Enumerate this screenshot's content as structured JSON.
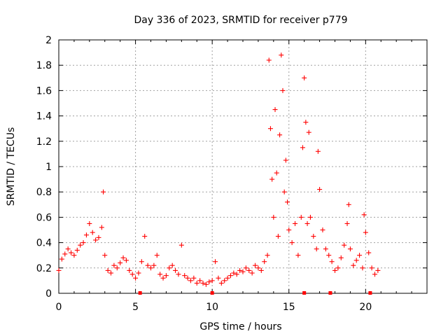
{
  "chart_data": {
    "type": "scatter",
    "title": "Day 336 of 2023, SRMTID for receiver p779",
    "xlabel": "GPS time / hours",
    "ylabel": "SRMTID / TECUs",
    "xlim": [
      0,
      24
    ],
    "ylim": [
      0,
      2
    ],
    "x_ticks": [
      "0",
      "5",
      "10",
      "15",
      "20"
    ],
    "y_ticks": [
      "0",
      "0.2",
      "0.4",
      "0.6",
      "0.8",
      "1",
      "1.2",
      "1.4",
      "1.6",
      "1.8",
      "2"
    ],
    "grid": true,
    "marker": "plus",
    "color": "#ff0000",
    "gap_markers_x": [
      5.3,
      10.0,
      16.0,
      17.7,
      20.3
    ],
    "series": [
      {
        "name": "SRMTID",
        "x": [
          0.0,
          0.2,
          0.4,
          0.6,
          0.8,
          1.0,
          1.2,
          1.4,
          1.6,
          1.8,
          2.0,
          2.2,
          2.4,
          2.6,
          2.8,
          2.9,
          3.0,
          3.2,
          3.4,
          3.6,
          3.8,
          4.0,
          4.2,
          4.4,
          4.6,
          4.8,
          5.0,
          5.2,
          5.4,
          5.6,
          5.8,
          6.0,
          6.2,
          6.4,
          6.6,
          6.8,
          7.0,
          7.2,
          7.4,
          7.6,
          7.8,
          8.0,
          8.2,
          8.4,
          8.6,
          8.8,
          9.0,
          9.2,
          9.4,
          9.6,
          9.8,
          10.0,
          10.2,
          10.4,
          10.6,
          10.8,
          11.0,
          11.2,
          11.4,
          11.6,
          11.8,
          12.0,
          12.2,
          12.4,
          12.6,
          12.8,
          13.0,
          13.2,
          13.4,
          13.6,
          13.7,
          13.8,
          13.9,
          14.0,
          14.1,
          14.2,
          14.3,
          14.4,
          14.5,
          14.6,
          14.7,
          14.8,
          14.9,
          15.0,
          15.2,
          15.4,
          15.6,
          15.8,
          15.9,
          16.0,
          16.1,
          16.2,
          16.3,
          16.4,
          16.6,
          16.8,
          16.9,
          17.0,
          17.2,
          17.4,
          17.6,
          17.8,
          18.0,
          18.2,
          18.4,
          18.6,
          18.8,
          18.9,
          19.0,
          19.2,
          19.4,
          19.6,
          19.8,
          19.9,
          20.0,
          20.2,
          20.4,
          20.6,
          20.8
        ],
        "y": [
          0.18,
          0.27,
          0.31,
          0.35,
          0.32,
          0.3,
          0.34,
          0.38,
          0.4,
          0.46,
          0.55,
          0.48,
          0.42,
          0.44,
          0.52,
          0.8,
          0.3,
          0.18,
          0.16,
          0.22,
          0.2,
          0.24,
          0.28,
          0.26,
          0.18,
          0.15,
          0.12,
          0.16,
          0.25,
          0.45,
          0.22,
          0.2,
          0.22,
          0.3,
          0.15,
          0.12,
          0.14,
          0.2,
          0.22,
          0.18,
          0.15,
          0.38,
          0.14,
          0.12,
          0.1,
          0.12,
          0.08,
          0.1,
          0.08,
          0.07,
          0.09,
          0.1,
          0.25,
          0.12,
          0.08,
          0.1,
          0.12,
          0.14,
          0.16,
          0.15,
          0.18,
          0.17,
          0.2,
          0.18,
          0.16,
          0.22,
          0.2,
          0.18,
          0.25,
          0.3,
          1.84,
          1.3,
          0.9,
          0.6,
          1.45,
          0.95,
          0.45,
          1.25,
          1.88,
          1.6,
          0.8,
          1.05,
          0.72,
          0.5,
          0.4,
          0.55,
          0.3,
          0.6,
          1.15,
          1.7,
          1.35,
          0.55,
          1.27,
          0.6,
          0.45,
          0.35,
          1.12,
          0.82,
          0.5,
          0.35,
          0.3,
          0.25,
          0.18,
          0.2,
          0.28,
          0.38,
          0.55,
          0.7,
          0.35,
          0.22,
          0.26,
          0.3,
          0.2,
          0.62,
          0.48,
          0.32,
          0.2,
          0.15,
          0.18
        ]
      }
    ]
  }
}
